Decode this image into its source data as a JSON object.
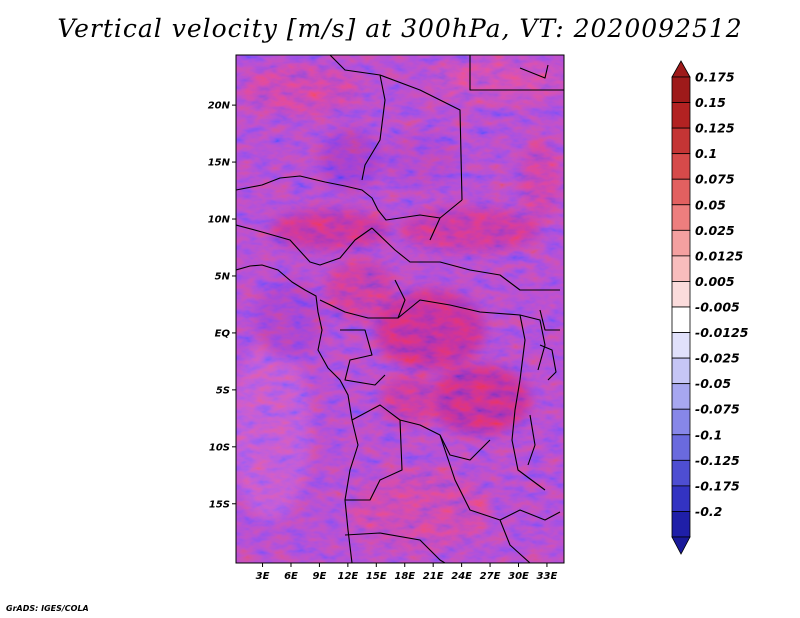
{
  "title": "Vertical velocity [m/s] at 300hPa, VT: 2020092512",
  "footer": "GrADS: IGES/COLA",
  "map": {
    "lat_labels": [
      {
        "label": "20N",
        "lat": 20
      },
      {
        "label": "15N",
        "lat": 15
      },
      {
        "label": "10N",
        "lat": 10
      },
      {
        "label": "5N",
        "lat": 5
      },
      {
        "label": "EQ",
        "lat": 0
      },
      {
        "label": "5S",
        "lat": -5
      },
      {
        "label": "10S",
        "lat": -10
      },
      {
        "label": "15S",
        "lat": -15
      }
    ],
    "lon_labels": [
      {
        "label": "3E",
        "lon": 3
      },
      {
        "label": "6E",
        "lon": 6
      },
      {
        "label": "9E",
        "lon": 9
      },
      {
        "label": "12E",
        "lon": 12
      },
      {
        "label": "15E",
        "lon": 15
      },
      {
        "label": "18E",
        "lon": 18
      },
      {
        "label": "21E",
        "lon": 21
      },
      {
        "label": "24E",
        "lon": 24
      },
      {
        "label": "27E",
        "lon": 27
      },
      {
        "label": "30E",
        "lon": 30
      },
      {
        "label": "33E",
        "lon": 33
      }
    ]
  },
  "colorbar": {
    "levels": [
      {
        "label": "0.175",
        "color": "#9e1a1a"
      },
      {
        "label": "0.15",
        "color": "#b22222"
      },
      {
        "label": "0.125",
        "color": "#c43535"
      },
      {
        "label": "0.1",
        "color": "#d64a4a"
      },
      {
        "label": "0.075",
        "color": "#e26060"
      },
      {
        "label": "0.05",
        "color": "#ed7e7e"
      },
      {
        "label": "0.025",
        "color": "#f4a0a0"
      },
      {
        "label": "0.0125",
        "color": "#f8bdbd"
      },
      {
        "label": "0.005",
        "color": "#fbdcdc"
      },
      {
        "label": "-0.005",
        "color": "#ffffff"
      },
      {
        "label": "-0.0125",
        "color": "#e1e1fb"
      },
      {
        "label": "-0.025",
        "color": "#c6c6f6"
      },
      {
        "label": "-0.05",
        "color": "#a7a7f0"
      },
      {
        "label": "-0.075",
        "color": "#8787e8"
      },
      {
        "label": "-0.1",
        "color": "#6a6ade"
      },
      {
        "label": "-0.125",
        "color": "#4e4ed2"
      },
      {
        "label": "-0.175",
        "color": "#3333c2"
      },
      {
        "label": "-0.2",
        "color": "#1f1fa8"
      }
    ],
    "top_cap_color": "#9e1a1a",
    "bottom_cap_color": "#1a1a9a"
  }
}
